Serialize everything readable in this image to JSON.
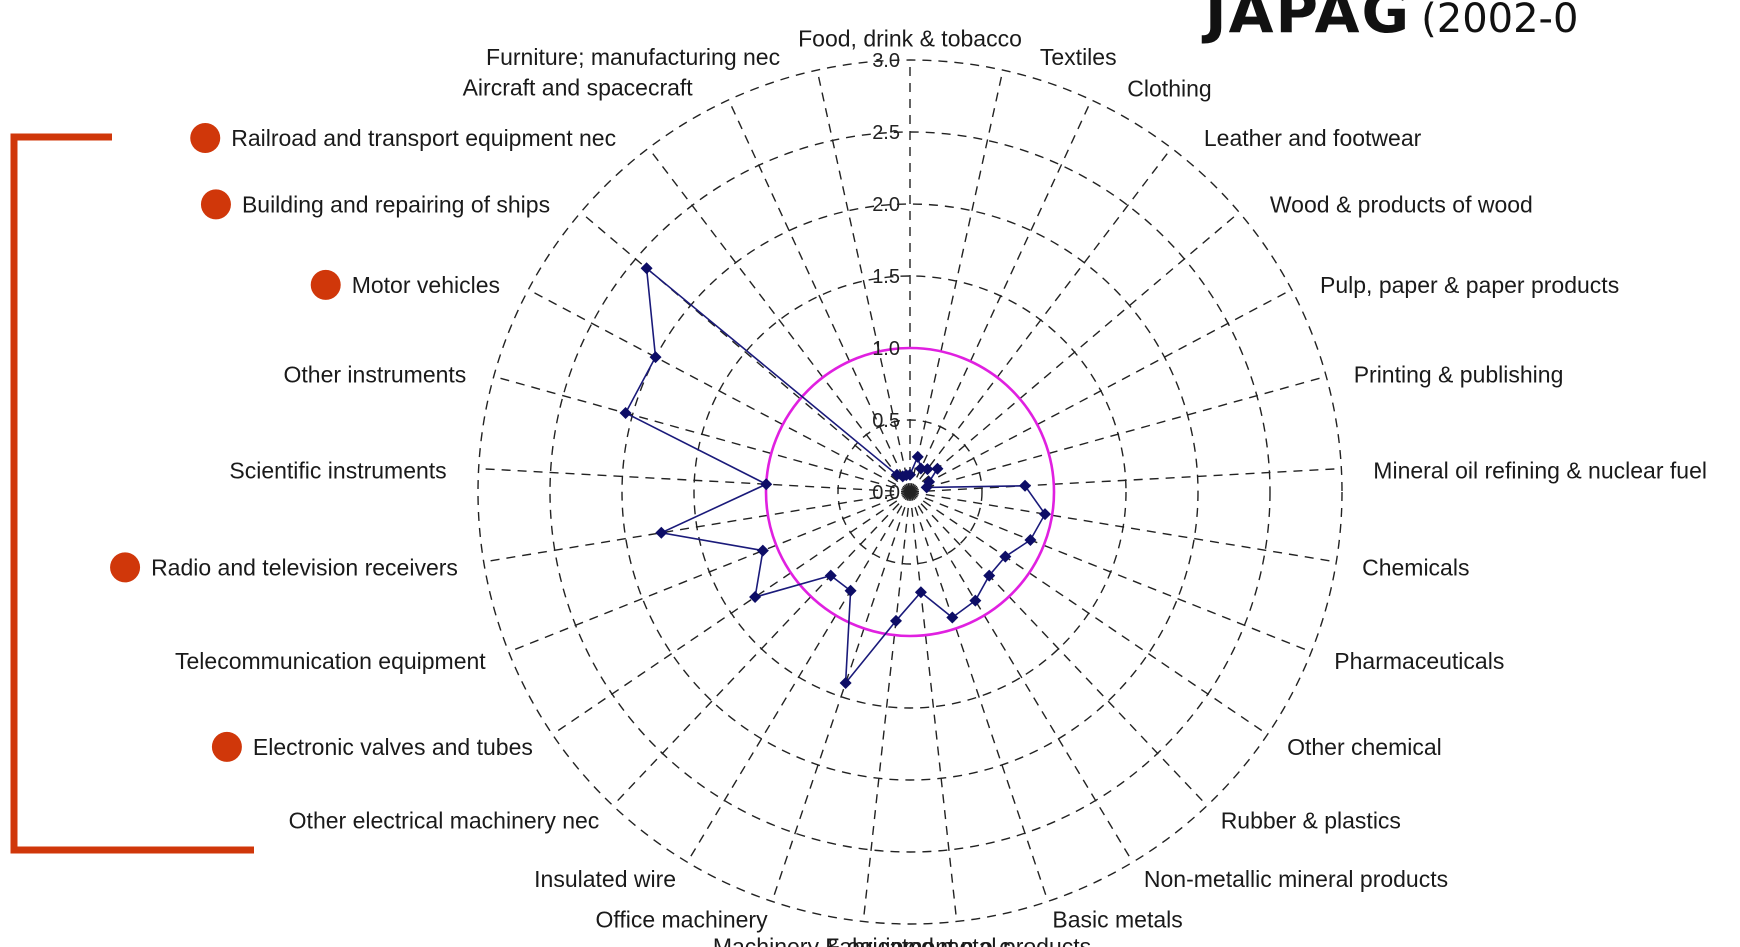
{
  "title": {
    "main": "JAPAG",
    "sub": "(2002-0"
  },
  "chart_data": {
    "type": "radar",
    "rlim": [
      0,
      3.0
    ],
    "radial_ticks": [
      "0.0",
      "0.5",
      "1.0",
      "1.5",
      "2.0",
      "2.5",
      "3.0"
    ],
    "radial_tick_values": [
      0,
      0.5,
      1.0,
      1.5,
      2.0,
      2.5,
      3.0
    ],
    "reference_line": {
      "value": 1.0,
      "color": "#e020e0"
    },
    "series_color": "#1a1a7a",
    "marker_color": "#0d0d66",
    "highlight_color": "#d0370a",
    "categories": [
      "Food, drink & tobacco",
      "Textiles",
      "Clothing",
      "Leather and footwear",
      "Wood & products of wood",
      "Pulp, paper & paper products",
      "Printing & publishing",
      "Mineral oil refining & nuclear fuel",
      "Chemicals",
      "Pharmaceuticals",
      "Other chemical",
      "Rubber & plastics",
      "Non-metallic mineral products",
      "Basic metals",
      "Fabricated metal products",
      "Machinery & equipment n.e.c",
      "Office machinery",
      "Insulated wire",
      "Other electrical machinery nec",
      "Electronic valves and tubes",
      "Telecommunication equipment",
      "Radio and television receivers",
      "Scientific instruments",
      "Other instruments",
      "Motor vehicles",
      "Building and repairing of ships",
      "Railroad and transport equipment nec",
      "Aircraft and spacecraft",
      "Furniture; manufacturing nec"
    ],
    "values": [
      0.12,
      0.25,
      0.18,
      0.2,
      0.25,
      0.15,
      0.12,
      0.8,
      0.95,
      0.9,
      0.8,
      0.8,
      0.88,
      0.92,
      0.7,
      0.9,
      1.4,
      0.8,
      0.8,
      1.3,
      1.1,
      1.75,
      1.0,
      2.05,
      2.0,
      2.4,
      0.15,
      0.12,
      0.12
    ],
    "highlighted": [
      "Railroad and transport equipment nec",
      "Building and repairing of ships",
      "Motor vehicles",
      "Radio and television receivers",
      "Electronic valves and tubes"
    ]
  }
}
